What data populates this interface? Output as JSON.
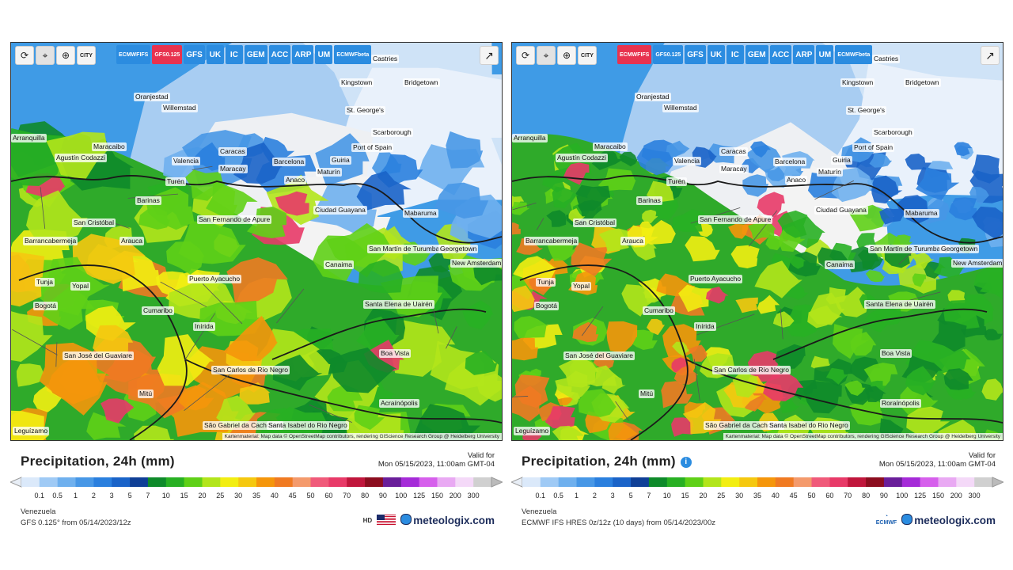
{
  "panels": [
    {
      "id": "gfs",
      "toolbar": {
        "reload_icon": "refresh-icon",
        "locate_icon": "pin-icon",
        "zoom_icon": "zoom-icon",
        "city_label": "CITY"
      },
      "models": [
        {
          "label": "ECMWF IFS",
          "line1": "ECMWF",
          "line2": "IFS",
          "selected": false
        },
        {
          "label": "GFS 0.125",
          "line1": "GFS",
          "line2": "0.125",
          "selected": true
        },
        {
          "label": "GFS",
          "line1": "GFS",
          "line2": "",
          "selected": false
        },
        {
          "label": "UK",
          "line1": "UK",
          "line2": "",
          "selected": false
        },
        {
          "label": "IC",
          "line1": "IC",
          "line2": "",
          "selected": false
        },
        {
          "label": "GEM",
          "line1": "GEM",
          "line2": "",
          "selected": false
        },
        {
          "label": "ACC",
          "line1": "ACC",
          "line2": "",
          "selected": false
        },
        {
          "label": "ARP",
          "line1": "ARP",
          "line2": "",
          "selected": false
        },
        {
          "label": "UM",
          "line1": "UM",
          "line2": "",
          "selected": false
        },
        {
          "label": "ECMWF beta",
          "line1": "ECMWF",
          "line2": "beta",
          "selected": false
        }
      ],
      "cities": [
        "Castries",
        "Kingstown",
        "Bridgetown",
        "Oranjestad",
        "Willemstad",
        "St. George's",
        "Scarborough",
        "Port of Spain",
        "Maracaibo",
        "Caracas",
        "Valencia",
        "Barcelona",
        "Maracay",
        "Guiria",
        "Maturín",
        "Anaco",
        "Turén",
        "Barinas",
        "San Fernando de Apure",
        "Ciudad Guayana",
        "Mabaruma",
        "San Cristóbal",
        "Arauca",
        "Barrancabermeja",
        "San Martín de Turumbang",
        "Georgetown",
        "New Amsterdam",
        "Canaima",
        "Puerto Ayacucho",
        "Tunja",
        "Yopal",
        "Bogotá",
        "Cumaribo",
        "Santa Elena de Uairén",
        "Inírida",
        "San José del Guaviare",
        "Boa Vista",
        "San Carlos de Río Negro",
        "Mitú",
        "Acraínópolis",
        "São Gabriel da Cachoeira",
        "Santa Isabel do Rio Negro",
        "Leguízamo",
        "Agustín Codazzi",
        "Arranquilla"
      ],
      "attribution": "Kartenmaterial: Map data © OpenStreetMap contributors, rendering GIScience Research Group @ Heidelberg University",
      "title": "Precipitation, 24h (mm)",
      "show_info": false,
      "valid_label": "Valid for",
      "valid_time": "Mon 05/15/2023, 11:00am GMT-04",
      "region": "Venezuela",
      "model_line": "GFS 0.125° from 05/14/2023/12z",
      "brand": "meteologix.com",
      "logo": "us-flag-icon"
    },
    {
      "id": "ecmwf",
      "toolbar": {
        "reload_icon": "refresh-icon",
        "locate_icon": "pin-icon",
        "zoom_icon": "zoom-icon",
        "city_label": "CITY"
      },
      "models": [
        {
          "label": "ECMWF IFS",
          "line1": "ECMWF",
          "line2": "IFS",
          "selected": true
        },
        {
          "label": "GFS 0.125",
          "line1": "GFS",
          "line2": "0.125",
          "selected": false
        },
        {
          "label": "GFS",
          "line1": "GFS",
          "line2": "",
          "selected": false
        },
        {
          "label": "UK",
          "line1": "UK",
          "line2": "",
          "selected": false
        },
        {
          "label": "IC",
          "line1": "IC",
          "line2": "",
          "selected": false
        },
        {
          "label": "GEM",
          "line1": "GEM",
          "line2": "",
          "selected": false
        },
        {
          "label": "ACC",
          "line1": "ACC",
          "line2": "",
          "selected": false
        },
        {
          "label": "ARP",
          "line1": "ARP",
          "line2": "",
          "selected": false
        },
        {
          "label": "UM",
          "line1": "UM",
          "line2": "",
          "selected": false
        },
        {
          "label": "ECMWF beta",
          "line1": "ECMWF",
          "line2": "beta",
          "selected": false
        }
      ],
      "cities": [
        "Castries",
        "Kingstown",
        "Bridgetown",
        "Oranjestad",
        "Willemstad",
        "St. George's",
        "Scarborough",
        "Port of Spain",
        "Maracaibo",
        "Caracas",
        "Valencia",
        "Barcelona",
        "Maracay",
        "Guiria",
        "Maturín",
        "Anaco",
        "Turén",
        "Barinas",
        "San Fernando de Apure",
        "Ciudad Guayana",
        "Mabaruma",
        "San Cristóbal",
        "Arauca",
        "Barrancabermeja",
        "San Martín de Turumbang",
        "Georgetown",
        "New Amsterdam",
        "Canaima",
        "Puerto Ayacucho",
        "Tunja",
        "Yopal",
        "Bogotá",
        "Cumaribo",
        "Santa Elena de Uairén",
        "Inírida",
        "San José del Guaviare",
        "Boa Vista",
        "San Carlos de Río Negro",
        "Mitú",
        "Roraínópolis",
        "São Gabriel da Cachoeira",
        "Santa Isabel do Rio Negro",
        "Leguízamo",
        "Agustín Codazzi",
        "Arranquilla"
      ],
      "attribution": "Kartenmaterial: Map data © OpenStreetMap contributors, rendering GIScience Research Group @ Heidelberg University",
      "title": "Precipitation, 24h (mm)",
      "show_info": true,
      "valid_label": "Valid for",
      "valid_time": "Mon 05/15/2023, 11:00am GMT-04",
      "region": "Venezuela",
      "model_line": "ECMWF IFS HRES 0z/12z (10 days) from 05/14/2023/00z",
      "brand": "meteologix.com",
      "logo": "ecmwf-logo-icon",
      "logo_text": "ECMWF"
    }
  ],
  "legend_scale": {
    "ticks": [
      "0.1",
      "0.5",
      "1",
      "2",
      "3",
      "5",
      "7",
      "10",
      "15",
      "20",
      "25",
      "30",
      "35",
      "40",
      "45",
      "50",
      "60",
      "70",
      "80",
      "90",
      "100",
      "125",
      "150",
      "200",
      "300"
    ],
    "colors": [
      "#dbe9fa",
      "#9fcaf5",
      "#6fb0ee",
      "#4797e6",
      "#2a7fde",
      "#1a63c8",
      "#0f3f96",
      "#0e8a2a",
      "#28b023",
      "#5fd017",
      "#b2e51b",
      "#f2ee12",
      "#f5c80f",
      "#f5960b",
      "#f07a22",
      "#f49a6c",
      "#f05a7a",
      "#e83a68",
      "#c0163c",
      "#8c0d1f",
      "#6a1e9a",
      "#a52bd8",
      "#d65fec",
      "#e9a9f3",
      "#f4d9f8",
      "#d0d0d0"
    ]
  }
}
